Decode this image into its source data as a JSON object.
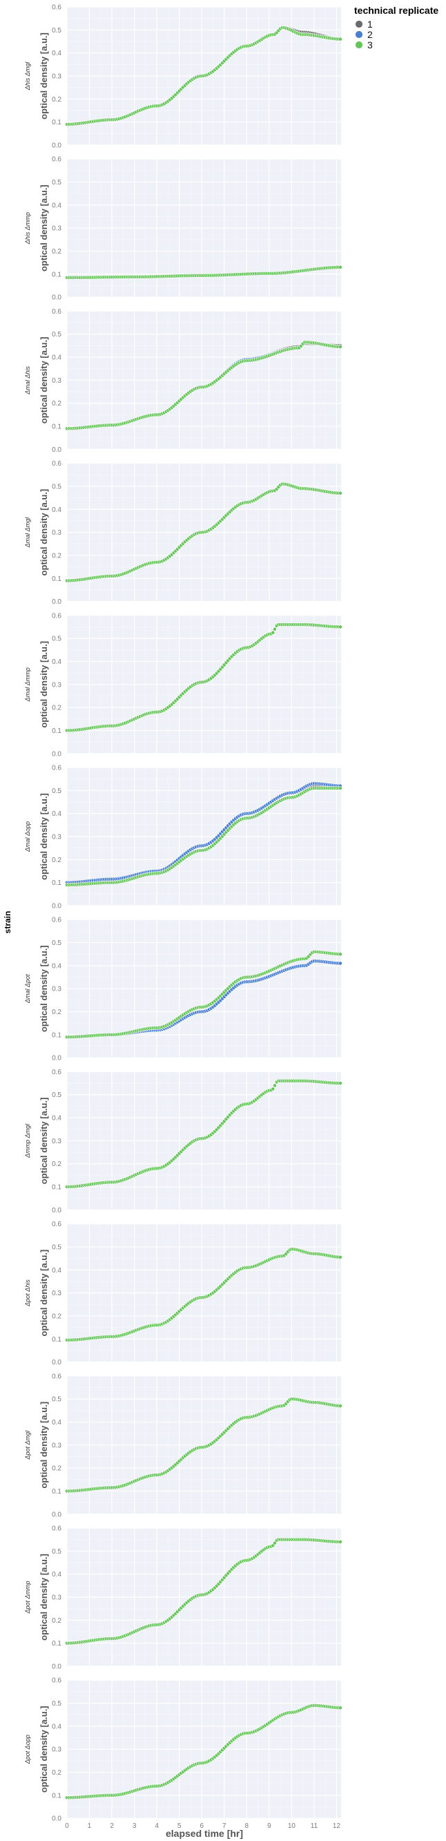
{
  "chart_data": {
    "type": "scatter",
    "facet_label": "strain",
    "xlabel": "elapsed time [hr]",
    "ylabel": "optical density [a.u.]",
    "xlim": [
      0,
      12.2
    ],
    "ylim": [
      0,
      0.6
    ],
    "xticks": [
      0,
      1,
      2,
      3,
      4,
      5,
      6,
      7,
      8,
      9,
      10,
      11,
      12
    ],
    "yticks": [
      0.0,
      0.1,
      0.2,
      0.3,
      0.4,
      0.5,
      0.6
    ],
    "grid": true,
    "legend": {
      "title": "technical replicate",
      "placement": "top-right",
      "entries": [
        {
          "label": "1",
          "color": "#6b6b6b"
        },
        {
          "label": "2",
          "color": "#4a7fcf"
        },
        {
          "label": "3",
          "color": "#66c55a"
        }
      ]
    },
    "facets": [
      {
        "label": "Δhis Δmgl",
        "series": [
          {
            "name": "1",
            "x": [
              0,
              2,
              4,
              6,
              8,
              9.2,
              9.6,
              10.5,
              12.2
            ],
            "y": [
              0.09,
              0.11,
              0.17,
              0.3,
              0.43,
              0.48,
              0.51,
              0.49,
              0.46
            ]
          },
          {
            "name": "2",
            "x": [
              0,
              2,
              4,
              6,
              8,
              9.2,
              9.6,
              10.5,
              12.2
            ],
            "y": [
              0.09,
              0.11,
              0.17,
              0.3,
              0.43,
              0.48,
              0.51,
              0.48,
              0.46
            ]
          },
          {
            "name": "3",
            "x": [
              0,
              2,
              4,
              6,
              8,
              9.2,
              9.6,
              10.5,
              12.2
            ],
            "y": [
              0.09,
              0.11,
              0.17,
              0.3,
              0.43,
              0.48,
              0.51,
              0.48,
              0.46
            ]
          }
        ]
      },
      {
        "label": "Δhis Δmmp",
        "series": [
          {
            "name": "1",
            "x": [
              0,
              3,
              6,
              9,
              12.2
            ],
            "y": [
              0.085,
              0.088,
              0.094,
              0.103,
              0.13
            ]
          },
          {
            "name": "2",
            "x": [
              0,
              3,
              6,
              9,
              12.2
            ],
            "y": [
              0.085,
              0.088,
              0.094,
              0.103,
              0.13
            ]
          },
          {
            "name": "3",
            "x": [
              0,
              3,
              6,
              9,
              12.2
            ],
            "y": [
              0.085,
              0.088,
              0.094,
              0.103,
              0.13
            ]
          }
        ]
      },
      {
        "label": "Δmal Δhis",
        "series": [
          {
            "name": "1",
            "x": [
              0,
              2,
              4,
              6,
              8,
              10.3,
              10.6,
              12.2
            ],
            "y": [
              0.09,
              0.105,
              0.15,
              0.27,
              0.39,
              0.445,
              0.46,
              0.45
            ]
          },
          {
            "name": "2",
            "x": [
              0,
              2,
              4,
              6,
              8,
              10.3,
              10.6,
              12.2
            ],
            "y": [
              0.09,
              0.105,
              0.15,
              0.27,
              0.39,
              0.44,
              0.465,
              0.445
            ]
          },
          {
            "name": "3",
            "x": [
              0,
              2,
              4,
              6,
              8,
              10.3,
              10.6,
              12.2
            ],
            "y": [
              0.09,
              0.105,
              0.15,
              0.27,
              0.385,
              0.44,
              0.465,
              0.445
            ]
          }
        ]
      },
      {
        "label": "Δmal Δmgl",
        "series": [
          {
            "name": "1",
            "x": [
              0,
              2,
              4,
              6,
              8,
              9.2,
              9.6,
              10.5,
              12.2
            ],
            "y": [
              0.09,
              0.11,
              0.17,
              0.3,
              0.43,
              0.48,
              0.51,
              0.49,
              0.47
            ]
          },
          {
            "name": "2",
            "x": [
              0,
              2,
              4,
              6,
              8,
              9.2,
              9.6,
              10.5,
              12.2
            ],
            "y": [
              0.09,
              0.11,
              0.17,
              0.3,
              0.43,
              0.48,
              0.51,
              0.49,
              0.47
            ]
          },
          {
            "name": "3",
            "x": [
              0,
              2,
              4,
              6,
              8,
              9.2,
              9.6,
              10.5,
              12.2
            ],
            "y": [
              0.09,
              0.11,
              0.17,
              0.3,
              0.43,
              0.48,
              0.51,
              0.49,
              0.47
            ]
          }
        ]
      },
      {
        "label": "Δmal Δmmp",
        "series": [
          {
            "name": "1",
            "x": [
              0,
              2,
              4,
              6,
              8,
              9.1,
              9.4,
              10.5,
              12.2
            ],
            "y": [
              0.1,
              0.12,
              0.18,
              0.31,
              0.46,
              0.52,
              0.56,
              0.56,
              0.55
            ]
          },
          {
            "name": "2",
            "x": [
              0,
              2,
              4,
              6,
              8,
              9.1,
              9.4,
              10.5,
              12.2
            ],
            "y": [
              0.1,
              0.12,
              0.18,
              0.31,
              0.46,
              0.52,
              0.56,
              0.56,
              0.55
            ]
          },
          {
            "name": "3",
            "x": [
              0,
              2,
              4,
              6,
              8,
              9.1,
              9.4,
              10.5,
              12.2
            ],
            "y": [
              0.1,
              0.12,
              0.18,
              0.31,
              0.46,
              0.52,
              0.56,
              0.56,
              0.55
            ]
          }
        ]
      },
      {
        "label": "Δmal Δopp",
        "series": [
          {
            "name": "1",
            "x": [
              0,
              2,
              4,
              6,
              8,
              10,
              11,
              12.2
            ],
            "y": [
              0.09,
              0.1,
              0.14,
              0.24,
              0.38,
              0.47,
              0.52,
              0.51
            ]
          },
          {
            "name": "2",
            "x": [
              0,
              2,
              4,
              6,
              8,
              10,
              11,
              12.2
            ],
            "y": [
              0.1,
              0.115,
              0.15,
              0.26,
              0.4,
              0.49,
              0.53,
              0.52
            ]
          },
          {
            "name": "3",
            "x": [
              0,
              2,
              4,
              6,
              8,
              10,
              11,
              12.2
            ],
            "y": [
              0.09,
              0.1,
              0.14,
              0.24,
              0.38,
              0.47,
              0.51,
              0.51
            ]
          }
        ]
      },
      {
        "label": "Δmal Δpot",
        "series": [
          {
            "name": "1",
            "x": [
              0,
              2,
              4,
              6,
              8,
              10.6,
              11,
              12.2
            ],
            "y": [
              0.09,
              0.1,
              0.13,
              0.22,
              0.35,
              0.43,
              0.46,
              0.45
            ]
          },
          {
            "name": "2",
            "x": [
              0,
              2,
              4,
              6,
              8,
              10.6,
              11,
              12.2
            ],
            "y": [
              0.09,
              0.1,
              0.12,
              0.2,
              0.33,
              0.4,
              0.42,
              0.41
            ]
          },
          {
            "name": "3",
            "x": [
              0,
              2,
              4,
              6,
              8,
              10.6,
              11,
              12.2
            ],
            "y": [
              0.09,
              0.1,
              0.13,
              0.22,
              0.35,
              0.43,
              0.46,
              0.45
            ]
          }
        ]
      },
      {
        "label": "Δmmp Δmgl",
        "series": [
          {
            "name": "1",
            "x": [
              0,
              2,
              4,
              6,
              8,
              9.1,
              9.4,
              10.5,
              12.2
            ],
            "y": [
              0.1,
              0.12,
              0.18,
              0.31,
              0.46,
              0.52,
              0.56,
              0.56,
              0.55
            ]
          },
          {
            "name": "2",
            "x": [
              0,
              2,
              4,
              6,
              8,
              9.1,
              9.4,
              10.5,
              12.2
            ],
            "y": [
              0.1,
              0.12,
              0.18,
              0.31,
              0.46,
              0.52,
              0.56,
              0.56,
              0.55
            ]
          },
          {
            "name": "3",
            "x": [
              0,
              2,
              4,
              6,
              8,
              9.1,
              9.4,
              10.5,
              12.2
            ],
            "y": [
              0.1,
              0.12,
              0.18,
              0.31,
              0.46,
              0.52,
              0.56,
              0.56,
              0.55
            ]
          }
        ]
      },
      {
        "label": "Δpot Δhis",
        "series": [
          {
            "name": "1",
            "x": [
              0,
              2,
              4,
              6,
              8,
              9.6,
              10,
              11,
              12.2
            ],
            "y": [
              0.095,
              0.11,
              0.16,
              0.28,
              0.41,
              0.46,
              0.49,
              0.47,
              0.455
            ]
          },
          {
            "name": "2",
            "x": [
              0,
              2,
              4,
              6,
              8,
              9.6,
              10,
              11,
              12.2
            ],
            "y": [
              0.095,
              0.11,
              0.16,
              0.28,
              0.41,
              0.46,
              0.49,
              0.47,
              0.455
            ]
          },
          {
            "name": "3",
            "x": [
              0,
              2,
              4,
              6,
              8,
              9.6,
              10,
              11,
              12.2
            ],
            "y": [
              0.095,
              0.11,
              0.16,
              0.28,
              0.41,
              0.46,
              0.49,
              0.47,
              0.455
            ]
          }
        ]
      },
      {
        "label": "Δpot Δmgl",
        "series": [
          {
            "name": "1",
            "x": [
              0,
              2,
              4,
              6,
              8,
              9.6,
              10,
              11,
              12.2
            ],
            "y": [
              0.1,
              0.115,
              0.17,
              0.29,
              0.42,
              0.47,
              0.5,
              0.485,
              0.47
            ]
          },
          {
            "name": "2",
            "x": [
              0,
              2,
              4,
              6,
              8,
              9.6,
              10,
              11,
              12.2
            ],
            "y": [
              0.1,
              0.115,
              0.17,
              0.29,
              0.42,
              0.47,
              0.5,
              0.485,
              0.47
            ]
          },
          {
            "name": "3",
            "x": [
              0,
              2,
              4,
              6,
              8,
              9.6,
              10,
              11,
              12.2
            ],
            "y": [
              0.1,
              0.115,
              0.17,
              0.29,
              0.42,
              0.47,
              0.5,
              0.485,
              0.47
            ]
          }
        ]
      },
      {
        "label": "Δpot Δmmp",
        "series": [
          {
            "name": "1",
            "x": [
              0,
              2,
              4,
              6,
              8,
              9.1,
              9.4,
              10.5,
              12.2
            ],
            "y": [
              0.1,
              0.12,
              0.18,
              0.31,
              0.46,
              0.52,
              0.55,
              0.55,
              0.54
            ]
          },
          {
            "name": "2",
            "x": [
              0,
              2,
              4,
              6,
              8,
              9.1,
              9.4,
              10.5,
              12.2
            ],
            "y": [
              0.1,
              0.12,
              0.18,
              0.31,
              0.46,
              0.52,
              0.55,
              0.55,
              0.54
            ]
          },
          {
            "name": "3",
            "x": [
              0,
              2,
              4,
              6,
              8,
              9.1,
              9.4,
              10.5,
              12.2
            ],
            "y": [
              0.1,
              0.12,
              0.18,
              0.31,
              0.46,
              0.52,
              0.55,
              0.55,
              0.54
            ]
          }
        ]
      },
      {
        "label": "Δpot Δopp",
        "series": [
          {
            "name": "1",
            "x": [
              0,
              2,
              4,
              6,
              8,
              10,
              11,
              12.2
            ],
            "y": [
              0.09,
              0.1,
              0.14,
              0.24,
              0.37,
              0.46,
              0.49,
              0.48
            ]
          },
          {
            "name": "2",
            "x": [
              0,
              2,
              4,
              6,
              8,
              10,
              11,
              12.2
            ],
            "y": [
              0.09,
              0.1,
              0.14,
              0.24,
              0.37,
              0.46,
              0.49,
              0.48
            ]
          },
          {
            "name": "3",
            "x": [
              0,
              2,
              4,
              6,
              8,
              10,
              11,
              12.2
            ],
            "y": [
              0.09,
              0.1,
              0.14,
              0.24,
              0.37,
              0.46,
              0.49,
              0.48
            ]
          }
        ]
      }
    ]
  }
}
